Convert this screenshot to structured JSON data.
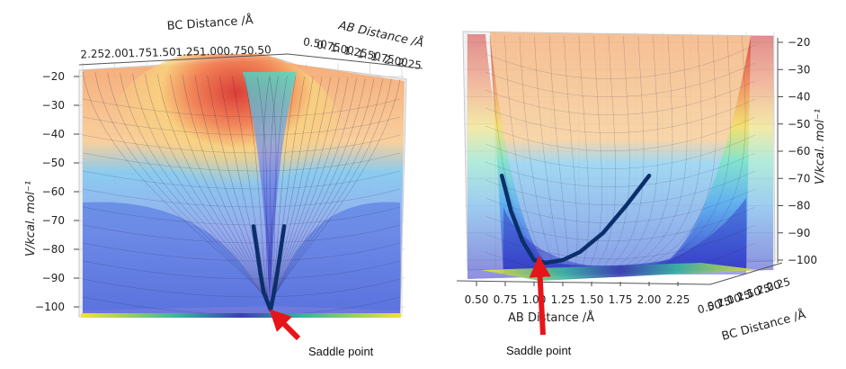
{
  "chart_data": [
    {
      "type": "surface3d",
      "view": "looking along the reaction path diagonal",
      "xlabel": "BC Distance /Å",
      "ylabel": "AB Distance /Å",
      "zlabel": "V/kcal. mol⁻¹",
      "x_ticks": [
        "2.25",
        "2.00",
        "1.75",
        "1.50",
        "1.25",
        "1.00",
        "0.75",
        "0.50"
      ],
      "y_ticks": [
        "0.50",
        "0.75",
        "1.00",
        "1.25",
        "1.50",
        "1.75",
        "2.00",
        "2.25"
      ],
      "z_ticks": [
        "−20",
        "−30",
        "−40",
        "−50",
        "−60",
        "−70",
        "−80",
        "−90",
        "−100"
      ],
      "zlim": [
        -104,
        -20
      ],
      "colormap": "jet (blue low, red high), translucent surface with contour floor",
      "trajectory": {
        "color": "#0b2f6b",
        "values": [
          -72,
          -80,
          -88,
          -95,
          -101,
          -95,
          -88,
          -80,
          -72
        ]
      },
      "annotation": {
        "text": "Saddle point",
        "arrow_color": "#e6151a"
      }
    },
    {
      "type": "surface3d",
      "view": "side view along AB axis",
      "xlabel": "AB Distance /Å",
      "ylabel": "BC Distance /Å",
      "zlabel": "V/kcal. mol⁻¹",
      "x_ticks": [
        "0.50",
        "0.75",
        "1.00",
        "1.25",
        "1.50",
        "1.75",
        "2.00",
        "2.25"
      ],
      "y_ticks": [
        "0.50",
        "0.75",
        "1.00",
        "1.25",
        "1.50",
        "1.75",
        "2.00",
        "2.25"
      ],
      "z_ticks": [
        "−20",
        "−30",
        "−40",
        "−50",
        "−60",
        "−70",
        "−80",
        "−90",
        "−100"
      ],
      "zlim": [
        -104,
        -20
      ],
      "colormap": "jet (blue low, red high), translucent surface with contour floor",
      "trajectory": {
        "color": "#0b2f6b",
        "x": [
          0.72,
          0.8,
          0.9,
          1.0,
          1.1,
          1.25,
          1.4,
          1.6,
          1.8,
          2.0
        ],
        "values": [
          -69,
          -82,
          -93,
          -100,
          -101,
          -100,
          -97,
          -90,
          -80,
          -69
        ]
      },
      "annotation": {
        "text": "Saddle point",
        "arrow_color": "#e6151a"
      }
    }
  ]
}
